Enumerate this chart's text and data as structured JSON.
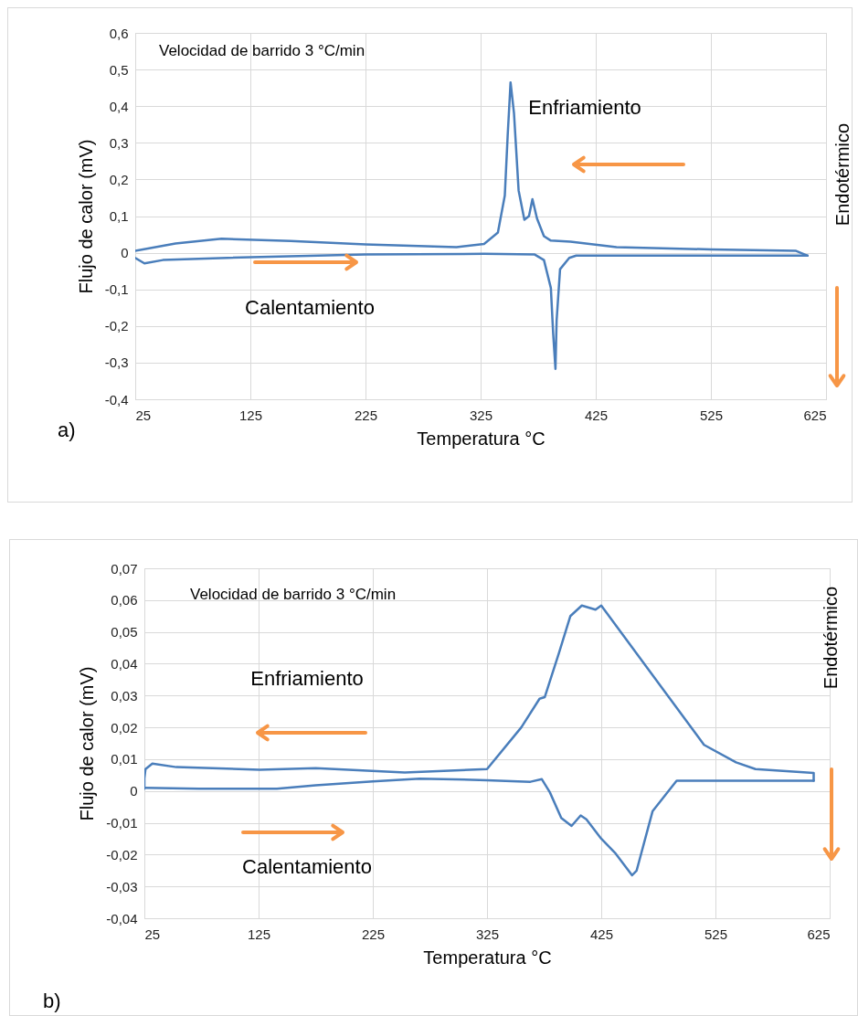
{
  "chart_data": [
    {
      "type": "line",
      "xlabel": "Temperatura °C",
      "ylabel": "Flujo de calor (mV)",
      "xlim": [
        25,
        625
      ],
      "ylim": [
        -0.4,
        0.6
      ],
      "xticks": [
        25,
        125,
        225,
        325,
        425,
        525,
        625
      ],
      "yticks": [
        {
          "value": -0.4,
          "label": "-0,4"
        },
        {
          "value": -0.3,
          "label": "-0,3"
        },
        {
          "value": -0.2,
          "label": "-0,2"
        },
        {
          "value": -0.1,
          "label": "-0,1"
        },
        0,
        {
          "value": 0.1,
          "label": "0,1"
        },
        {
          "value": 0.2,
          "label": "0,2"
        },
        {
          "value": 0.3,
          "label": "0,3"
        },
        {
          "value": 0.4,
          "label": "0,4"
        },
        {
          "value": 0.5,
          "label": "0,5"
        },
        {
          "value": 0.6,
          "label": "0,6"
        }
      ],
      "grid": true,
      "legend": false,
      "line_style": "solid",
      "marker": "none",
      "series": [
        {
          "name": "Enfriamiento",
          "color": "#4a7ebb",
          "x": [
            25,
            60,
            100,
            160,
            225,
            304,
            328,
            340,
            346,
            348.5,
            351,
            354,
            358,
            363,
            367,
            370,
            374,
            380,
            386,
            403,
            443,
            525,
            599,
            609
          ],
          "values": [
            0.005,
            0.025,
            0.038,
            0.032,
            0.023,
            0.015,
            0.024,
            0.055,
            0.156,
            0.32,
            0.465,
            0.38,
            0.17,
            0.09,
            0.1,
            0.146,
            0.093,
            0.045,
            0.033,
            0.03,
            0.015,
            0.009,
            0.005,
            -0.008
          ]
        },
        {
          "name": "Calentamiento",
          "color": "#4a7ebb",
          "x": [
            25,
            33,
            49,
            105,
            225,
            328,
            372,
            380,
            386,
            388,
            390,
            391,
            394,
            402,
            408,
            609
          ],
          "values": [
            -0.014,
            -0.029,
            -0.02,
            -0.014,
            -0.005,
            -0.003,
            -0.005,
            -0.02,
            -0.096,
            -0.22,
            -0.317,
            -0.185,
            -0.045,
            -0.014,
            -0.008,
            -0.008
          ]
        }
      ],
      "annotations": [
        "Velocidad de barrido 3 °C/min",
        "Endotérmico",
        "a)"
      ]
    },
    {
      "type": "line",
      "xlabel": "Temperatura °C",
      "ylabel": "Flujo de calor (mV)",
      "xlim": [
        25,
        625
      ],
      "ylim": [
        -0.04,
        0.07
      ],
      "xticks": [
        25,
        125,
        225,
        325,
        425,
        525,
        625
      ],
      "yticks": [
        {
          "value": -0.04,
          "label": "-0,04"
        },
        {
          "value": -0.03,
          "label": "-0,03"
        },
        {
          "value": -0.02,
          "label": "-0,02"
        },
        {
          "value": -0.01,
          "label": "-0,01"
        },
        0,
        {
          "value": 0.01,
          "label": "0,01"
        },
        {
          "value": 0.02,
          "label": "0,02"
        },
        {
          "value": 0.03,
          "label": "0,03"
        },
        {
          "value": 0.04,
          "label": "0,04"
        },
        {
          "value": 0.05,
          "label": "0,05"
        },
        {
          "value": 0.06,
          "label": "0,06"
        },
        {
          "value": 0.07,
          "label": "0,07"
        }
      ],
      "grid": true,
      "legend": false,
      "line_style": "solid",
      "marker": "none",
      "series": [
        {
          "color": "#4a7ebb",
          "x": [
            25,
            25,
            26,
            32,
            53,
            126,
            175,
            253,
            325,
            355,
            371,
            375.5,
            388,
            398,
            408,
            420,
            425,
            515,
            543,
            560,
            611,
            611
          ],
          "values": [
            0.0007,
            0.004,
            0.0069,
            0.0086,
            0.0075,
            0.0067,
            0.0072,
            0.0058,
            0.0069,
            0.02,
            0.029,
            0.0295,
            0.0434,
            0.055,
            0.0583,
            0.057,
            0.0583,
            0.0145,
            0.009,
            0.0069,
            0.0057,
            0.0032
          ]
        },
        {
          "color": "#4a7ebb",
          "x": [
            25,
            73,
            141,
            175,
            225,
            266,
            325,
            363,
            373,
            380,
            390,
            399,
            407,
            412,
            425,
            437,
            452,
            456,
            470,
            491,
            611
          ],
          "values": [
            0.001,
            0.0007,
            0.0007,
            0.0018,
            0.003,
            0.0039,
            0.0034,
            0.0029,
            0.0037,
            -0.0004,
            -0.0085,
            -0.011,
            -0.0077,
            -0.0089,
            -0.015,
            -0.0194,
            -0.0265,
            -0.025,
            -0.0063,
            0.0032,
            0.0032
          ]
        }
      ],
      "annotations": [
        "Velocidad de barrido 3 °C/min",
        "Endotérmico",
        "b)",
        "Enfriamiento",
        "Calentamiento"
      ]
    }
  ]
}
